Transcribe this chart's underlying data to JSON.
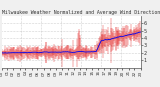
{
  "title": "Milwaukee Weather Normalized and Average Wind Direction (Last 24 Hours)",
  "bg_color": "#f0f0f0",
  "plot_bg_color": "#ffffff",
  "grid_color": "#aaaaaa",
  "bar_color": "#dd0000",
  "line_color": "#0000ee",
  "n_points": 288,
  "ylim": [
    0,
    7
  ],
  "yticks": [
    1,
    2,
    3,
    4,
    5,
    6
  ],
  "ylabel_fontsize": 3.5,
  "xlabel_fontsize": 3.0,
  "title_fontsize": 3.5
}
